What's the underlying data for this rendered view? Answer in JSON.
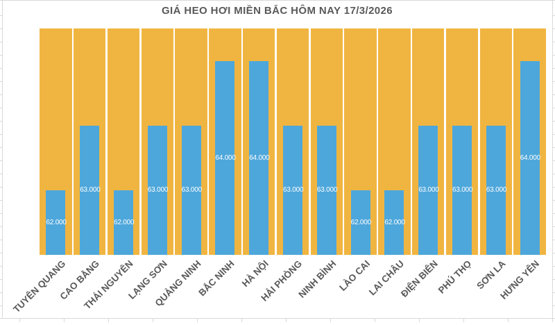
{
  "chart_data": {
    "type": "bar",
    "title": "GIÁ HEO HƠI MIỀN BẮC HÔM NAY 17/3/2026",
    "categories": [
      "TUYÊN QUANG",
      "CAO BẰNG",
      "THÁI NGUYÊN",
      "LẠNG SƠN",
      "QUẢNG NINH",
      "BẮC NINH",
      "HÀ NỘI",
      "HẢI PHÒNG",
      "NINH BÌNH",
      "LÀO CAI",
      "LAI CHÂU",
      "ĐIỆN BIÊN",
      "PHÚ THỌ",
      "SƠN LA",
      "HƯNG YÊN"
    ],
    "values": [
      62000,
      63000,
      62000,
      63000,
      63000,
      64000,
      64000,
      63000,
      63000,
      62000,
      62000,
      63000,
      63000,
      63000,
      64000
    ],
    "value_labels": [
      "62.000",
      "63.000",
      "62.000",
      "63.000",
      "63.000",
      "64.000",
      "64.000",
      "63.000",
      "63.000",
      "62.000",
      "62.000",
      "63.000",
      "63.000",
      "63.000",
      "64.000"
    ],
    "xlabel": "",
    "ylabel": "",
    "ylim": [
      61000,
      64500
    ],
    "grid": "off",
    "legend": "none",
    "colors": {
      "bar": "#4EA7DB",
      "bar_background": "#F0B541",
      "value_label": "#FFFFFF",
      "title": "#595959",
      "axis_label": "#595959",
      "sheet_gridline": "#D9D9D9"
    }
  }
}
